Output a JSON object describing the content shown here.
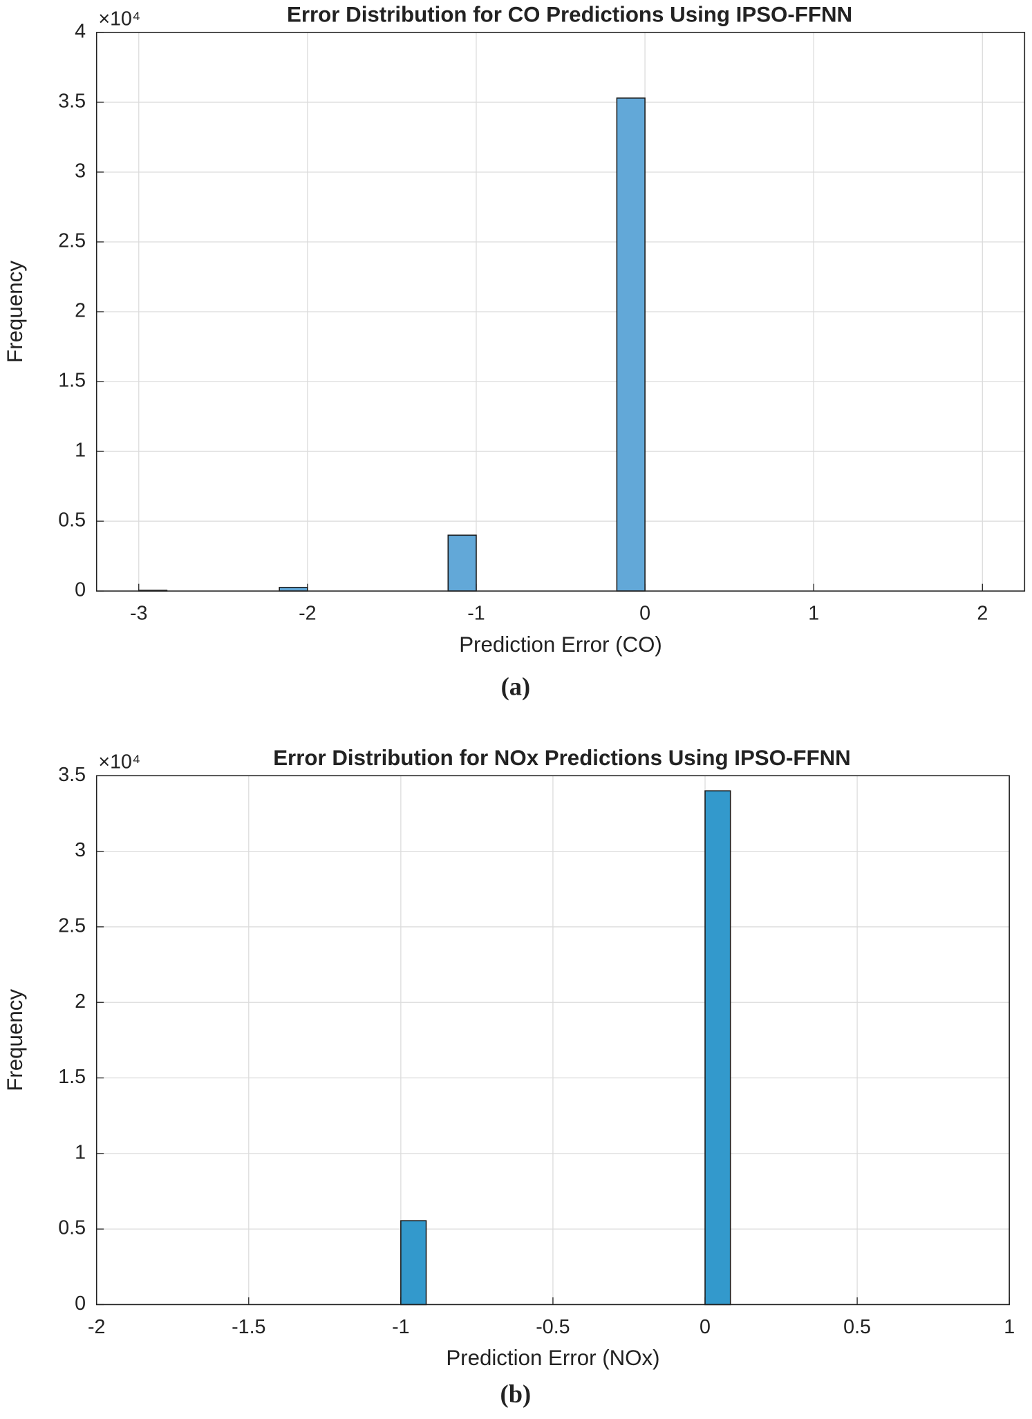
{
  "chart_data": [
    {
      "type": "histogram",
      "title": "Error Distribution for CO Predictions Using IPSO-FFNN",
      "y_exponent": "×10⁴",
      "xlabel": "Prediction Error (CO)",
      "ylabel": "Frequency",
      "caption": "(a)",
      "bins": [
        -3,
        -2.8333,
        -2.6667,
        -2.5,
        -2.3333,
        -2.1667,
        -2,
        -1.8333,
        -1.6667,
        -1.5,
        -1.3333,
        -1.1667,
        -1,
        -0.8333,
        -0.6667,
        -0.5,
        -0.3333,
        -0.1667,
        0,
        0.1667,
        0.3333,
        0.5,
        0.6667,
        0.8333,
        1,
        1.1667,
        1.3333,
        1.5,
        1.6667,
        1.8333,
        2
      ],
      "values": [
        0.005,
        0,
        0,
        0,
        0,
        0.026,
        0,
        0,
        0,
        0,
        0,
        0.4,
        0,
        0,
        0,
        0,
        0,
        3.53,
        0,
        0,
        0,
        0,
        0,
        0,
        0,
        0,
        0,
        0,
        0,
        0
      ],
      "color": "#62a8d8",
      "xlim": [
        -3.25,
        2.25
      ],
      "xticks": [
        -3,
        -2,
        -1,
        0,
        1,
        2
      ],
      "ylim": [
        0,
        4
      ],
      "yticks": [
        0,
        0.5,
        1,
        1.5,
        2,
        2.5,
        3,
        3.5,
        4
      ],
      "grid": true
    },
    {
      "type": "histogram",
      "title": "Error Distribution for NOx Predictions Using IPSO-FFNN",
      "y_exponent": "×10⁴",
      "xlabel": "Prediction Error (NOx)",
      "ylabel": "Frequency",
      "caption": "(b)",
      "bins": [
        -2,
        -1.9167,
        -1.8333,
        -1.75,
        -1.6667,
        -1.5833,
        -1.5,
        -1.4167,
        -1.3333,
        -1.25,
        -1.1667,
        -1.0833,
        -1,
        -0.9167,
        -0.8333,
        -0.75,
        -0.6667,
        -0.5833,
        -0.5,
        -0.4167,
        -0.3333,
        -0.25,
        -0.1667,
        -0.0833,
        0,
        0.0833,
        0.1667,
        0.25,
        0.3333,
        0.4167,
        0.5,
        0.5833,
        0.6667,
        0.75,
        0.8333,
        0.9167,
        1
      ],
      "values": [
        0,
        0,
        0,
        0,
        0,
        0,
        0,
        0,
        0,
        0,
        0,
        0,
        0.555,
        0,
        0,
        0,
        0,
        0,
        0,
        0,
        0,
        0,
        0,
        0,
        3.4,
        0,
        0,
        0,
        0,
        0,
        0,
        0,
        0,
        0,
        0,
        0
      ],
      "color": "#3399cc",
      "xlim": [
        -2,
        1
      ],
      "xticks": [
        -2,
        -1.5,
        -1,
        -0.5,
        0,
        0.5,
        1
      ],
      "ylim": [
        0,
        3.5
      ],
      "yticks": [
        0,
        0.5,
        1,
        1.5,
        2,
        2.5,
        3,
        3.5
      ],
      "grid": true
    }
  ]
}
